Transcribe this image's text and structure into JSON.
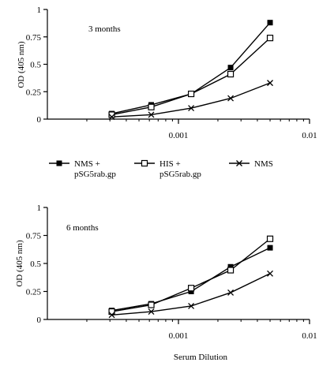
{
  "figure": {
    "legend": {
      "entries": [
        {
          "marker": "filled-square",
          "line1": "NMS +",
          "line2": "pSG5rab.gp"
        },
        {
          "marker": "open-square",
          "line1": "HIS +",
          "line2": "pSG5rab.gp"
        },
        {
          "marker": "cross",
          "line1": "NMS",
          "line2": ""
        }
      ]
    }
  },
  "chart_data": [
    {
      "type": "line",
      "annotation": "3 months",
      "title": "",
      "xlabel": "",
      "ylabel": "OD (405 nm)",
      "x_scale": "log",
      "xlim": [
        0.0001,
        0.01
      ],
      "ylim": [
        0,
        1
      ],
      "y_ticks": [
        0,
        0.25,
        0.5,
        0.75,
        1
      ],
      "y_tick_labels": [
        "0",
        "0.25",
        "0.5",
        "0.75",
        "1"
      ],
      "x_ticks": [
        0.001,
        0.01
      ],
      "x_tick_labels": [
        "0.001",
        "0.01"
      ],
      "x": [
        0.00031,
        0.00062,
        0.00125,
        0.0025,
        0.005
      ],
      "series": [
        {
          "name": "NMS + pSG5rab.gp",
          "marker": "filled-square",
          "values": [
            0.05,
            0.13,
            0.23,
            0.47,
            0.88
          ]
        },
        {
          "name": "HIS + pSG5rab.gp",
          "marker": "open-square",
          "values": [
            0.04,
            0.11,
            0.23,
            0.41,
            0.74
          ]
        },
        {
          "name": "NMS",
          "marker": "cross",
          "values": [
            0.02,
            0.04,
            0.1,
            0.19,
            0.33
          ]
        }
      ]
    },
    {
      "type": "line",
      "annotation": "6 months",
      "title": "",
      "xlabel": "Serum Dilution",
      "ylabel": "OD (405 nm)",
      "x_scale": "log",
      "xlim": [
        0.0001,
        0.01
      ],
      "ylim": [
        0,
        1
      ],
      "y_ticks": [
        0,
        0.25,
        0.5,
        0.75,
        1
      ],
      "y_tick_labels": [
        "0",
        "0.25",
        "0.5",
        "0.75",
        "1"
      ],
      "x_ticks": [
        0.001,
        0.01
      ],
      "x_tick_labels": [
        "0.001",
        "0.01"
      ],
      "x": [
        0.00031,
        0.00062,
        0.00125,
        0.0025,
        0.005
      ],
      "series": [
        {
          "name": "NMS + pSG5rab.gp",
          "marker": "filled-square",
          "values": [
            0.08,
            0.14,
            0.25,
            0.47,
            0.64
          ]
        },
        {
          "name": "HIS + pSG5rab.gp",
          "marker": "open-square",
          "values": [
            0.07,
            0.13,
            0.28,
            0.44,
            0.72
          ]
        },
        {
          "name": "NMS",
          "marker": "cross",
          "values": [
            0.04,
            0.07,
            0.12,
            0.24,
            0.41
          ]
        }
      ]
    }
  ]
}
